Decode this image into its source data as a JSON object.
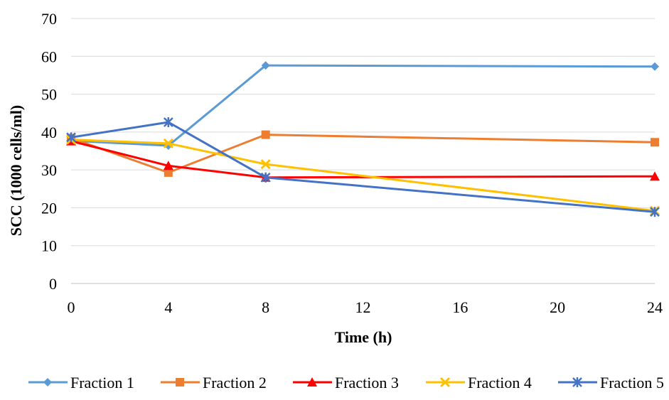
{
  "chart_data": {
    "type": "line",
    "title": "",
    "xlabel": "Time (h)",
    "ylabel": "SCC (1000 cells/ml)",
    "x": [
      0,
      4,
      8,
      24
    ],
    "xticks": [
      0,
      4,
      8,
      12,
      16,
      20,
      24
    ],
    "xlim": [
      0,
      24
    ],
    "yticks": [
      0,
      10,
      20,
      30,
      40,
      50,
      60,
      70
    ],
    "ylim": [
      0,
      70
    ],
    "grid": "horizontal",
    "legend_position": "bottom",
    "series": [
      {
        "name": "Fraction 1",
        "color": "#5B9BD5",
        "marker": "diamond",
        "values": [
          37.7,
          36.4,
          57.6,
          57.3
        ]
      },
      {
        "name": "Fraction 2",
        "color": "#ED7D31",
        "marker": "square",
        "values": [
          38.4,
          29.3,
          39.3,
          37.3
        ]
      },
      {
        "name": "Fraction 3",
        "color": "#FF0000",
        "marker": "triangle",
        "values": [
          37.6,
          31.1,
          28.0,
          28.3
        ]
      },
      {
        "name": "Fraction 4",
        "color": "#FFC000",
        "marker": "x",
        "values": [
          38.0,
          37.0,
          31.5,
          19.2
        ]
      },
      {
        "name": "Fraction 5",
        "color": "#4472C4",
        "marker": "star",
        "values": [
          38.6,
          42.6,
          28.0,
          18.9
        ]
      }
    ]
  }
}
